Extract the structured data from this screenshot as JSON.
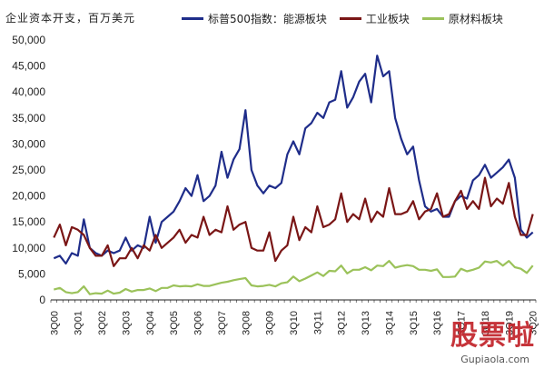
{
  "header": {
    "unit_title": "企业资本开支，百万美元"
  },
  "colors": {
    "energy": "#1f2d8a",
    "industrial": "#7a1616",
    "materials": "#9bc25a",
    "axis": "#222222"
  },
  "chart_data": {
    "type": "line",
    "title": "",
    "xlabel": "",
    "ylabel": "企业资本开支，百万美元",
    "ylim": [
      0,
      50000
    ],
    "yticks": [
      0,
      5000,
      10000,
      15000,
      20000,
      25000,
      30000,
      35000,
      40000,
      45000,
      50000
    ],
    "ytick_labels": [
      "0",
      "5,000",
      "10,000",
      "15,000",
      "20,000",
      "25,000",
      "30,000",
      "35,000",
      "40,000",
      "45,000",
      "50,000"
    ],
    "legend_position": "top",
    "xticks": [
      {
        "index": 0,
        "label": "3Q00"
      },
      {
        "index": 4,
        "label": "3Q01"
      },
      {
        "index": 8,
        "label": "3Q02"
      },
      {
        "index": 12,
        "label": "3Q03"
      },
      {
        "index": 16,
        "label": "3Q04"
      },
      {
        "index": 20,
        "label": "3Q05"
      },
      {
        "index": 24,
        "label": "3Q06"
      },
      {
        "index": 28,
        "label": "3Q07"
      },
      {
        "index": 32,
        "label": "3Q08"
      },
      {
        "index": 36,
        "label": "3Q09"
      },
      {
        "index": 40,
        "label": "3Q10"
      },
      {
        "index": 44,
        "label": "3Q11"
      },
      {
        "index": 48,
        "label": "3Q12"
      },
      {
        "index": 52,
        "label": "3Q13"
      },
      {
        "index": 56,
        "label": "3Q14"
      },
      {
        "index": 60,
        "label": "3Q15"
      },
      {
        "index": 64,
        "label": "3Q16"
      },
      {
        "index": 68,
        "label": "3Q17"
      },
      {
        "index": 72,
        "label": "3Q18"
      },
      {
        "index": 76,
        "label": "3Q19"
      },
      {
        "index": 80,
        "label": "3Q20"
      }
    ],
    "series": [
      {
        "name": "标普500指数：能源板块",
        "color": "#1f2d8a",
        "values": [
          8000,
          8500,
          7000,
          9000,
          8500,
          15500,
          10000,
          9000,
          8500,
          9500,
          9000,
          9500,
          12000,
          9500,
          10500,
          10000,
          16000,
          11000,
          15000,
          16000,
          17000,
          19000,
          21500,
          20000,
          24000,
          19000,
          20000,
          22000,
          28500,
          23500,
          27000,
          29000,
          36500,
          25000,
          22000,
          20500,
          22000,
          21500,
          22500,
          28000,
          30500,
          28000,
          33000,
          34000,
          36000,
          35000,
          38000,
          38500,
          44000,
          37000,
          39000,
          42000,
          43500,
          38000,
          47000,
          43000,
          44000,
          35000,
          31000,
          28000,
          29500,
          23000,
          18000,
          17000,
          17500,
          16000,
          16000,
          19000,
          20000,
          19500,
          23000,
          24000,
          26000,
          23500,
          24500,
          25500,
          27000,
          23500,
          13500,
          12000,
          13000
        ]
      },
      {
        "name": "工业板块",
        "color": "#7a1616",
        "values": [
          12000,
          14500,
          10500,
          14000,
          13500,
          12500,
          10000,
          8500,
          8500,
          10500,
          6500,
          8000,
          8000,
          10000,
          8000,
          10500,
          9500,
          12500,
          10000,
          11000,
          12000,
          13500,
          11000,
          12500,
          12000,
          16000,
          12500,
          13500,
          13000,
          18000,
          13500,
          14500,
          15000,
          10000,
          9500,
          9500,
          13000,
          7500,
          9500,
          10500,
          16000,
          11500,
          14000,
          13000,
          18000,
          14000,
          14500,
          15500,
          20500,
          15000,
          16500,
          15500,
          19500,
          15000,
          17000,
          16000,
          21500,
          16500,
          16500,
          17000,
          19000,
          15500,
          17000,
          17500,
          20500,
          16000,
          16500,
          19000,
          21000,
          17500,
          19000,
          17500,
          23500,
          18000,
          19500,
          18500,
          22500,
          16000,
          12500,
          12500,
          16500
        ]
      },
      {
        "name": "原材料板块",
        "color": "#9bc25a",
        "values": [
          2000,
          2300,
          1500,
          1300,
          1500,
          2600,
          1100,
          1300,
          1200,
          1800,
          1200,
          1400,
          2100,
          1600,
          1900,
          1900,
          2200,
          1700,
          2300,
          2300,
          2800,
          2600,
          2700,
          2600,
          3000,
          2700,
          2700,
          3000,
          3300,
          3500,
          3800,
          4000,
          4200,
          2800,
          2600,
          2700,
          2900,
          2600,
          3200,
          3400,
          4500,
          3600,
          4100,
          4700,
          5300,
          4600,
          5600,
          5500,
          6600,
          5100,
          5800,
          5800,
          6300,
          5700,
          6600,
          6500,
          7500,
          6200,
          6500,
          6700,
          6500,
          5800,
          5800,
          5600,
          5900,
          4400,
          4400,
          4500,
          6000,
          5500,
          5800,
          6200,
          7400,
          7200,
          7500,
          6600,
          7500,
          6300,
          6000,
          5200,
          6600
        ]
      }
    ]
  },
  "watermark": {
    "text": "股票啦",
    "url": "Gupiaola.com"
  }
}
